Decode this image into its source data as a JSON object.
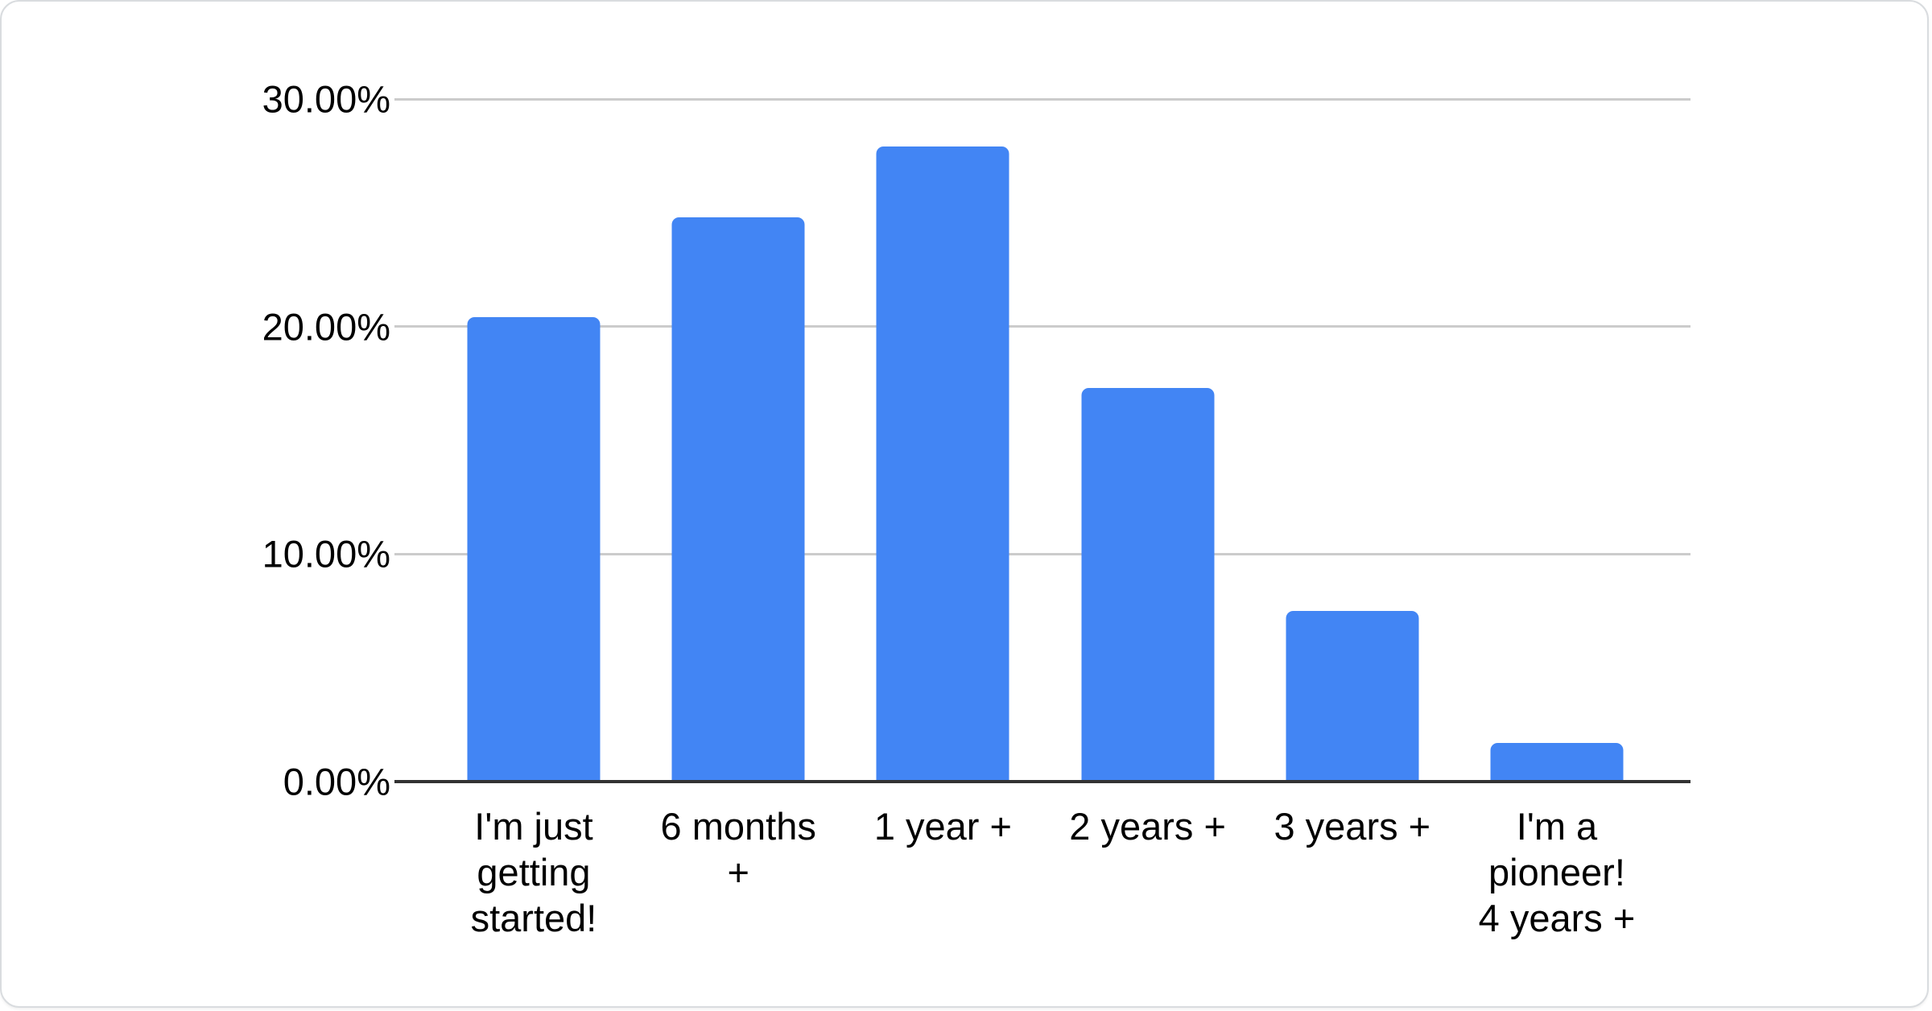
{
  "card": {
    "background": "#ffffff",
    "border_color": "#d9dcdf"
  },
  "chart_data": {
    "type": "bar",
    "title": "",
    "xlabel": "",
    "ylabel": "",
    "categories": [
      "I'm just getting started!",
      "6 months +",
      "1 year +",
      "2 years +",
      "3 years +",
      "I'm a pioneer! 4 years +"
    ],
    "values": [
      20.4,
      24.8,
      27.9,
      17.3,
      7.5,
      1.7
    ],
    "value_unit": "%",
    "ylim": [
      0,
      30
    ],
    "grid": true,
    "legend": "none",
    "bar_color": "#4285f4",
    "gridline_color": "#cccccc",
    "axis_line_color": "#333333",
    "label_color": "#000000",
    "yticks": [
      {
        "value": 0,
        "label": "0.00%"
      },
      {
        "value": 10,
        "label": "10.00%"
      },
      {
        "value": 20,
        "label": "20.00%"
      },
      {
        "value": 30,
        "label": "30.00%"
      }
    ],
    "xtick_display": [
      "I'm just\ngetting\nstarted!",
      "6 months\n+",
      "1 year +",
      "2 years +",
      "3 years +",
      "I'm a\npioneer!\n4 years +"
    ]
  }
}
